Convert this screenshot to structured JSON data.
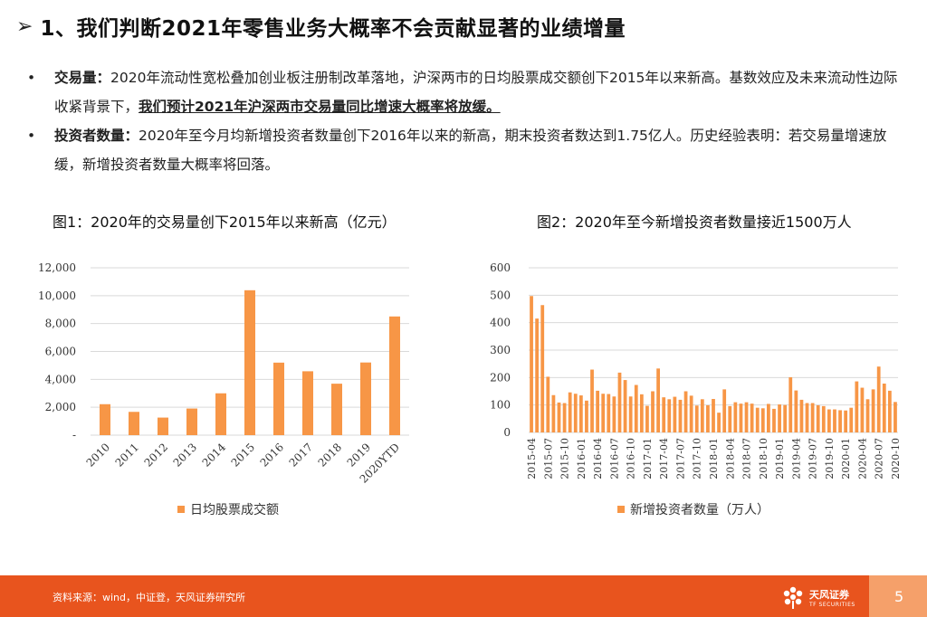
{
  "title": {
    "arrow": "➢",
    "text": "1、我们判断2021年零售业务大概率不会贡献显著的业绩增量"
  },
  "bullets": [
    {
      "mark": "•",
      "label": "交易量：",
      "text": "2020年流动性宽松叠加创业板注册制改革落地，沪深两市的日均股票成交额创下2015年以来新高。基数效应及未来流动性边际收紧背景下，",
      "highlight": "我们预计2021年沪深两市交易量同比增速大概率将放缓。"
    },
    {
      "mark": "•",
      "label": "投资者数量：",
      "text": "2020年至今月均新增投资者数量创下2016年以来的新高，期末投资者数达到1.75亿人。历史经验表明：若交易量增速放缓，新增投资者数量大概率将回落。"
    }
  ],
  "chart_data": [
    {
      "type": "bar",
      "title": "图1：2020年的交易量创下2015年以来新高（亿元）",
      "categories": [
        "2010",
        "2011",
        "2012",
        "2013",
        "2014",
        "2015",
        "2016",
        "2017",
        "2018",
        "2019",
        "2020YTD"
      ],
      "values": [
        2220,
        1670,
        1260,
        1910,
        3000,
        10390,
        5200,
        4580,
        3690,
        5210,
        8510
      ],
      "ylim": [
        0,
        12000
      ],
      "ytick_labels": [
        "-",
        "2,000",
        "4,000",
        "6,000",
        "8,000",
        "10,000",
        "12,000"
      ],
      "legend": "日均股票成交额",
      "color": "#f79646"
    },
    {
      "type": "bar",
      "title": "图2：2020年至今新增投资者数量接近1500万人",
      "categories": [
        "2015-04",
        "2015-05",
        "2015-06",
        "2015-07",
        "2015-08",
        "2015-09",
        "2015-10",
        "2015-11",
        "2015-12",
        "2016-01",
        "2016-02",
        "2016-03",
        "2016-04",
        "2016-05",
        "2016-06",
        "2016-07",
        "2016-08",
        "2016-09",
        "2016-10",
        "2016-11",
        "2016-12",
        "2017-01",
        "2017-02",
        "2017-03",
        "2017-04",
        "2017-05",
        "2017-06",
        "2017-07",
        "2017-08",
        "2017-09",
        "2017-10",
        "2017-11",
        "2017-12",
        "2018-01",
        "2018-02",
        "2018-03",
        "2018-04",
        "2018-05",
        "2018-06",
        "2018-07",
        "2018-08",
        "2018-09",
        "2018-10",
        "2018-11",
        "2018-12",
        "2019-01",
        "2019-02",
        "2019-03",
        "2019-04",
        "2019-05",
        "2019-06",
        "2019-07",
        "2019-08",
        "2019-09",
        "2019-10",
        "2019-11",
        "2019-12",
        "2020-01",
        "2020-02",
        "2020-03",
        "2020-04",
        "2020-05",
        "2020-06",
        "2020-07",
        "2020-08",
        "2020-09",
        "2020-10"
      ],
      "values": [
        497,
        415,
        464,
        203,
        136,
        109,
        107,
        146,
        141,
        135,
        116,
        229,
        152,
        141,
        140,
        131,
        218,
        191,
        131,
        173,
        139,
        97,
        150,
        233,
        128,
        121,
        130,
        119,
        150,
        134,
        98,
        121,
        99,
        122,
        72,
        157,
        96,
        110,
        105,
        110,
        105,
        90,
        88,
        104,
        86,
        102,
        100,
        201,
        153,
        119,
        107,
        107,
        99,
        96,
        84,
        84,
        81,
        80,
        90,
        186,
        163,
        121,
        157,
        240,
        178,
        152,
        111
      ],
      "xtick_labels": [
        "2015-04",
        "2015-07",
        "2015-10",
        "2016-01",
        "2016-04",
        "2016-07",
        "2016-10",
        "2017-01",
        "2017-04",
        "2017-07",
        "2017-10",
        "2018-01",
        "2018-04",
        "2018-07",
        "2018-10",
        "2019-01",
        "2019-04",
        "2019-07",
        "2019-10",
        "2020-01",
        "2020-04",
        "2020-07",
        "2020-10"
      ],
      "ylim": [
        0,
        600
      ],
      "ytick_labels": [
        "0",
        "100",
        "200",
        "300",
        "400",
        "500",
        "600"
      ],
      "legend": "新增投资者数量（万人）",
      "color": "#f79646"
    }
  ],
  "footer": {
    "source": "资料来源：wind，中证登，天风证券研究所",
    "logo_cn": "天风证券",
    "logo_en": "TF SECURITIES",
    "page": "5",
    "color": "#e8541e"
  }
}
